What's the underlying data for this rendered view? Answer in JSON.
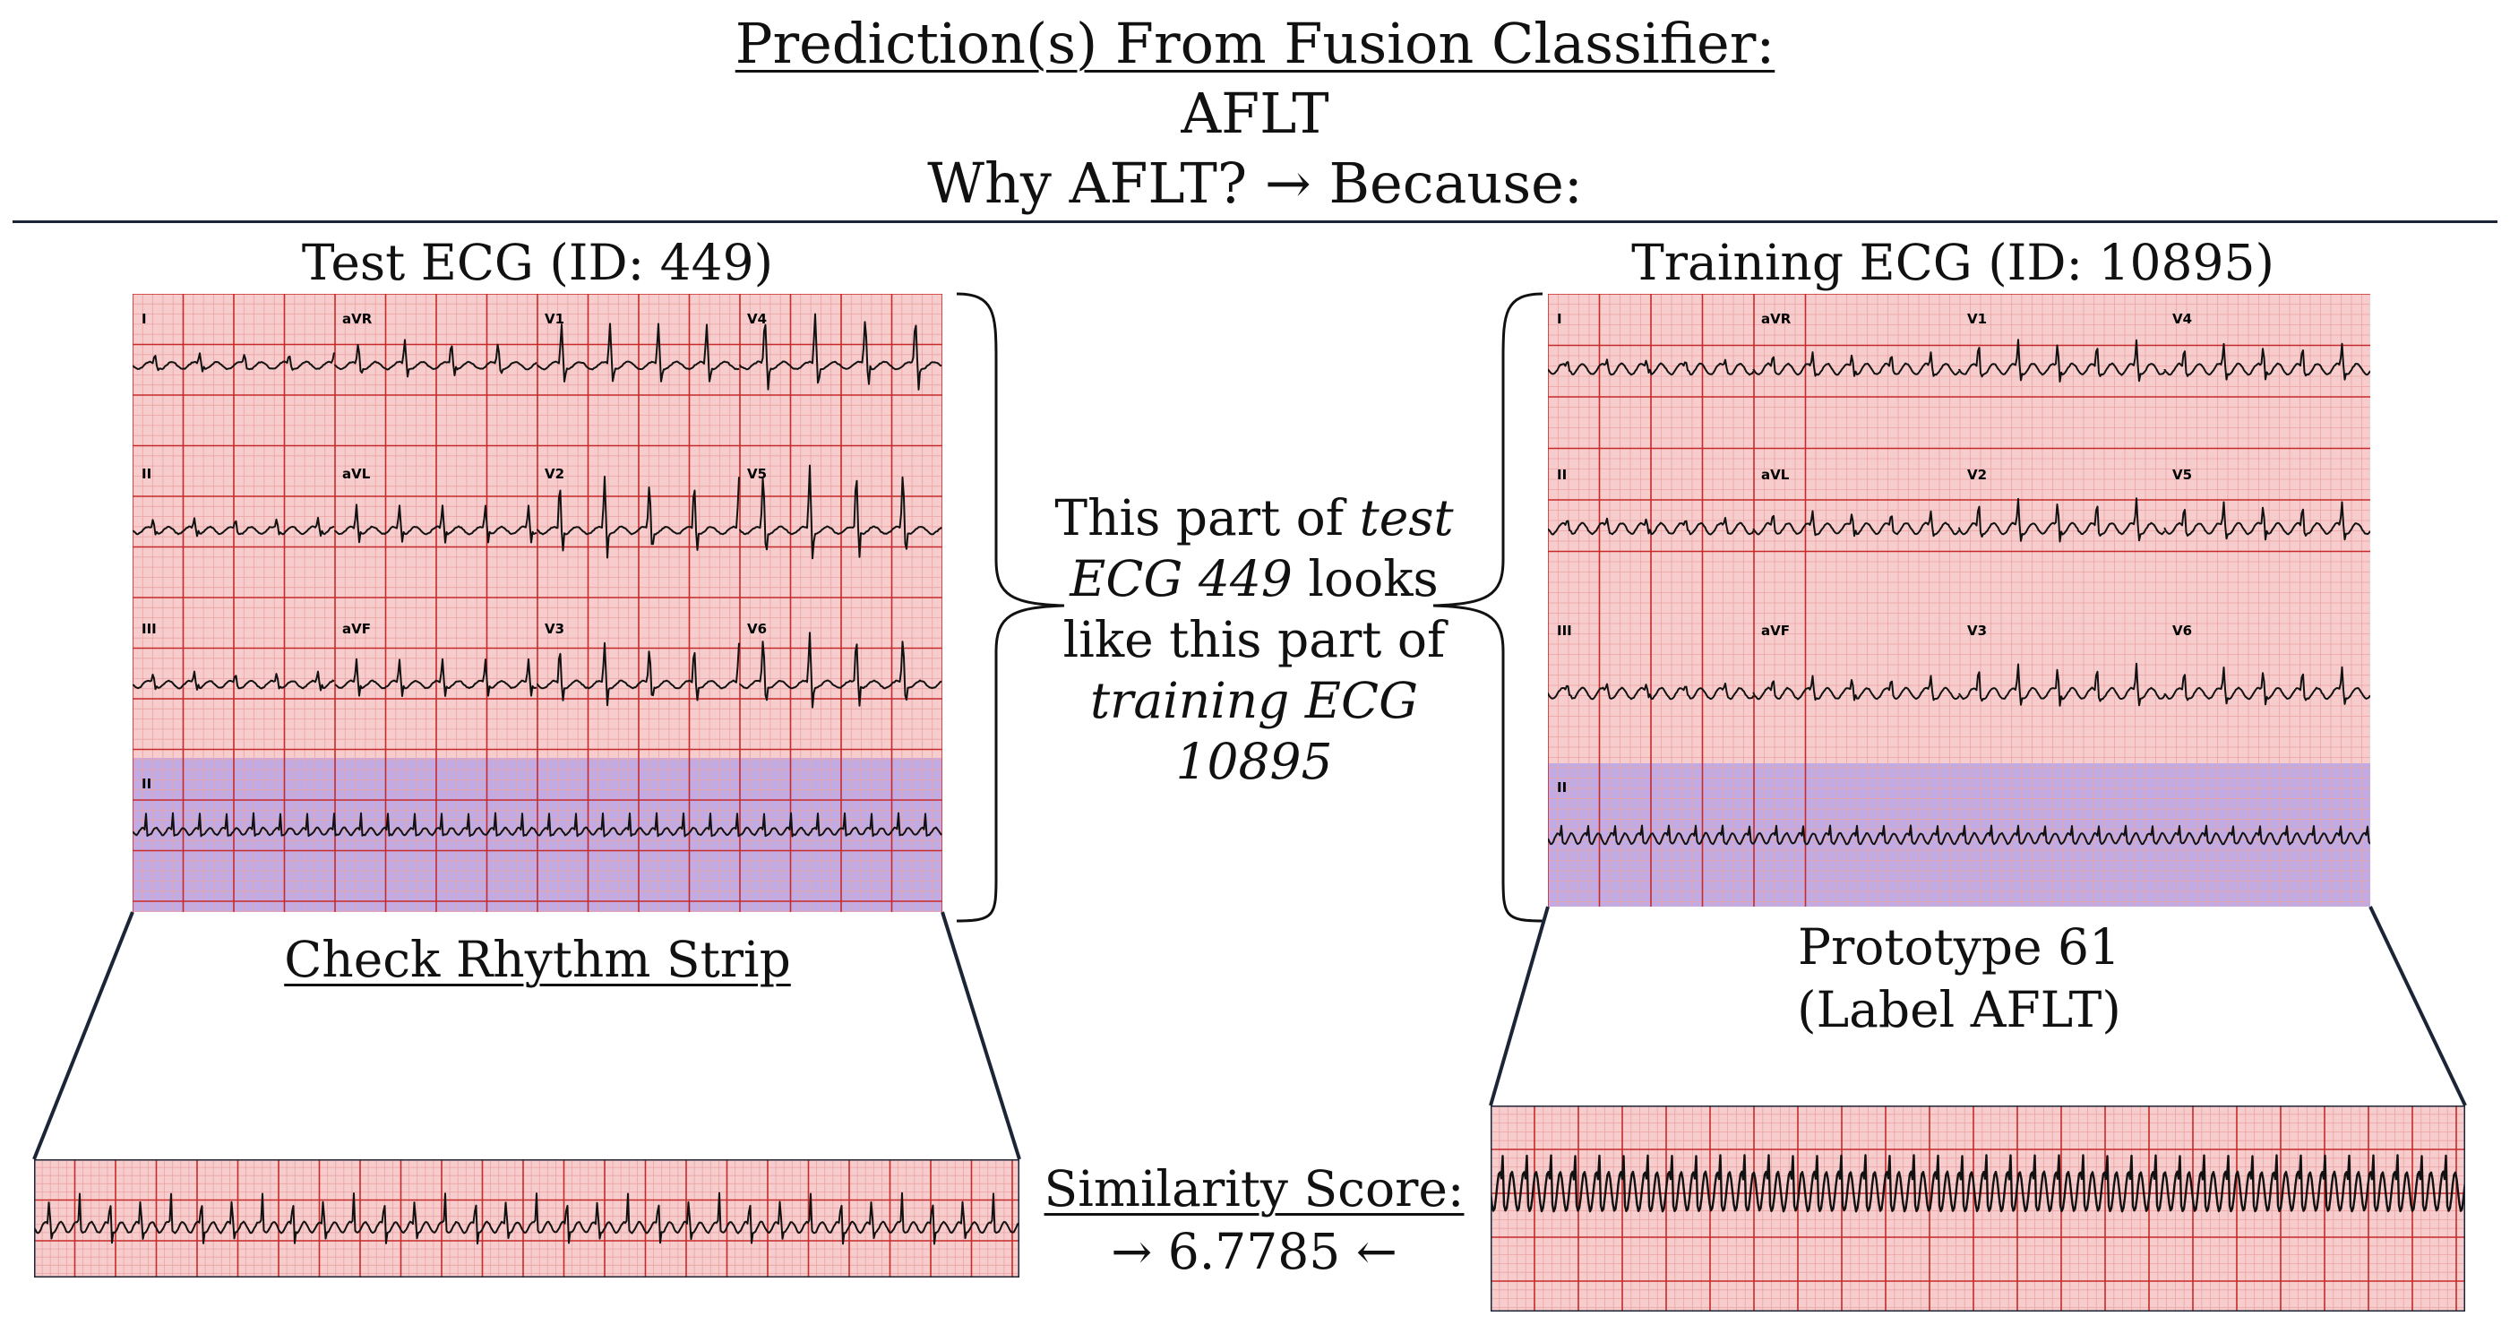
{
  "header": {
    "title": "Prediction(s) From Fusion Classifier:",
    "prediction": "AFLT",
    "why": "Why AFLT? → Because:"
  },
  "test_ecg": {
    "title": "Test ECG (ID: 449)",
    "leads": [
      "I",
      "aVR",
      "V1",
      "V4",
      "II",
      "aVL",
      "V2",
      "V5",
      "III",
      "aVF",
      "V3",
      "V6"
    ],
    "rhythm_lead": "II",
    "link_label": "Check Rhythm Strip"
  },
  "training_ecg": {
    "title": "Training ECG (ID: 10895)",
    "leads": [
      "I",
      "aVR",
      "V1",
      "V4",
      "II",
      "aVL",
      "V2",
      "V5",
      "III",
      "aVF",
      "V3",
      "V6"
    ],
    "rhythm_lead": "II",
    "prototype_label": "Prototype 61",
    "prototype_class": "(Label AFLT)"
  },
  "explanation": {
    "line1_a": "This part of ",
    "line1_b": "test",
    "line2_a": "ECG 449",
    "line2_b": " looks",
    "line3": "like this part of",
    "line4": "training ECG",
    "line5": "10895"
  },
  "similarity": {
    "label": "Similarity Score:",
    "value": "→  6.7785 ←"
  },
  "colors": {
    "grid_bg": "#f6cccc",
    "grid_minor": "#eba4a4",
    "grid_major": "#c72a2a",
    "highlight": "#b9a4e6",
    "trace": "#111111"
  }
}
